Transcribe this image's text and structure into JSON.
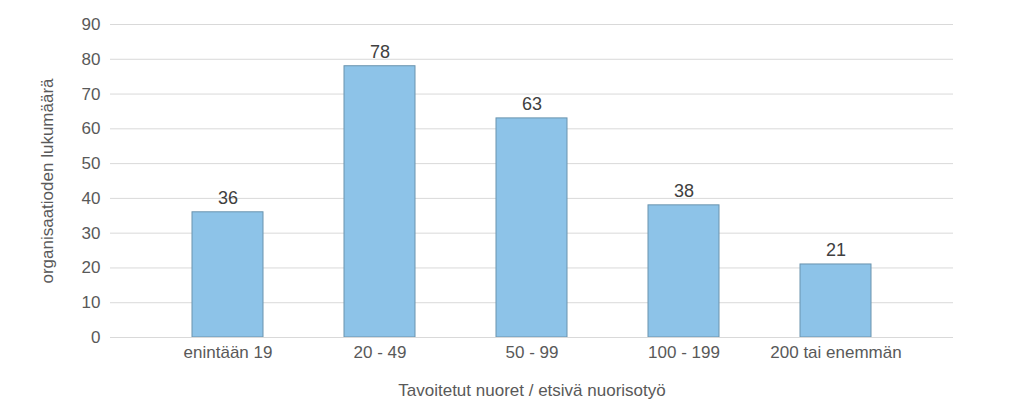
{
  "chart_data": {
    "type": "bar",
    "categories": [
      "enintään 19",
      "20 - 49",
      "50 - 99",
      "100 - 199",
      "200 tai enemmän"
    ],
    "values": [
      36,
      78,
      63,
      38,
      21
    ],
    "color": "#8dc3e8",
    "x_label": "Tavoitetut nuoret / etsivä nuorisotyö",
    "y_label": "organisaatioden lukumäärä",
    "ylim": [
      0,
      90
    ],
    "yticks": [
      0,
      10,
      20,
      30,
      40,
      50,
      60,
      70,
      80,
      90
    ],
    "grid": true,
    "data_labels": true
  }
}
